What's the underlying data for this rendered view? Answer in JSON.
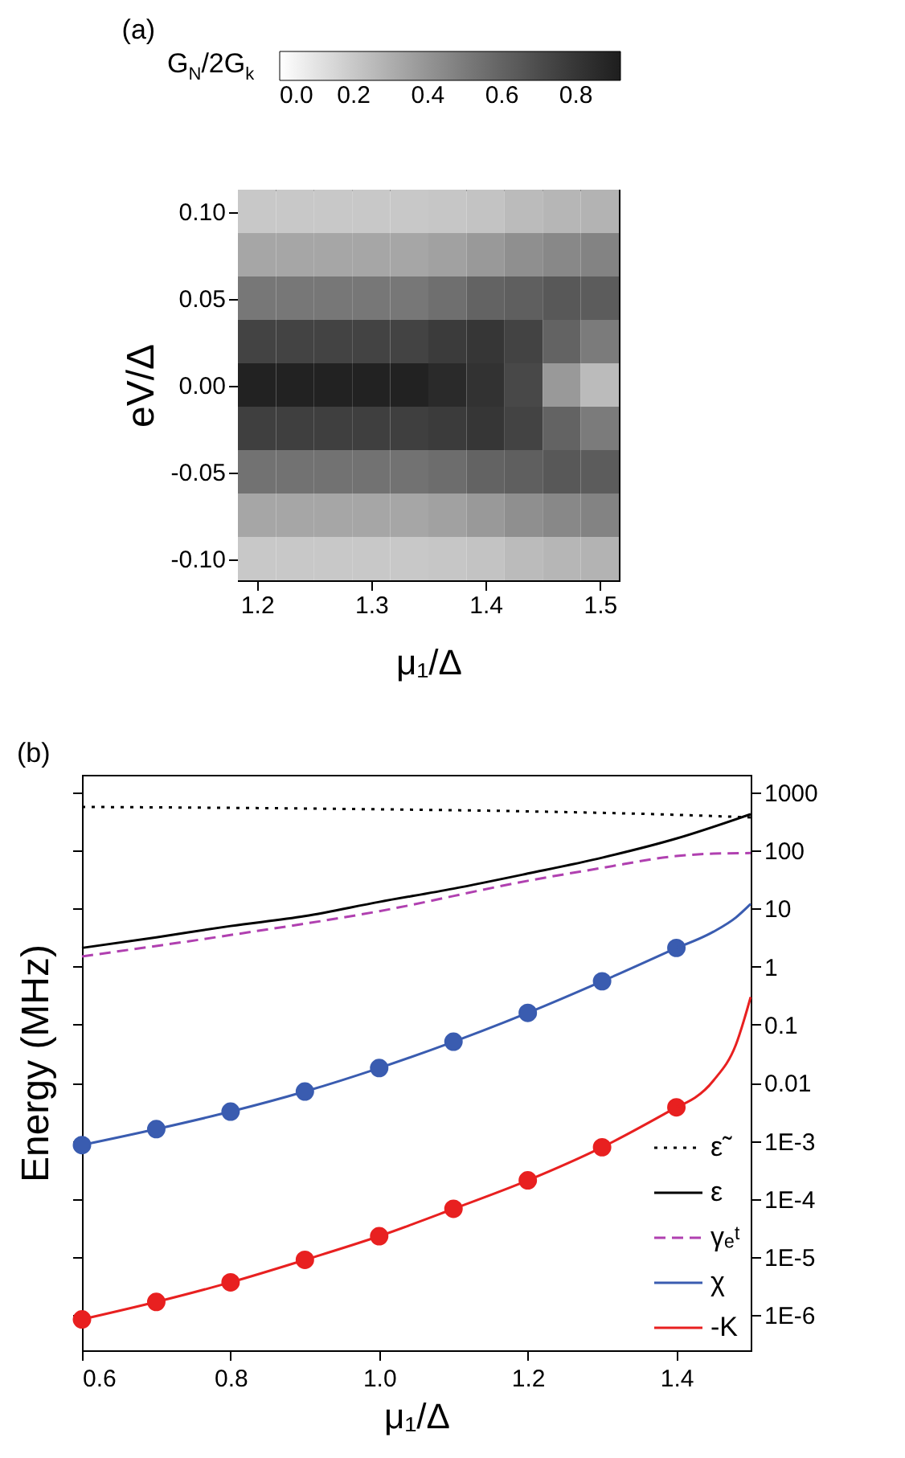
{
  "chart_data": [
    {
      "type": "heatmap",
      "title": "(a)",
      "xlabel": "μ₁/Δ",
      "ylabel": "eV/Δ",
      "clabel": "G$_{N}$/2G$_{k}$",
      "categories": [
        "1.2",
        null,
        null,
        "1.3",
        null,
        null,
        "1.4",
        null,
        null,
        "1.5"
      ],
      "y_categories": [
        "0.10",
        null,
        "0.05",
        null,
        "0.00",
        null,
        "-0.05",
        null,
        "-0.10"
      ],
      "cells": [
        [
          0.2,
          0.2,
          0.2,
          0.2,
          0.2,
          0.21,
          0.22,
          0.25,
          0.27,
          0.28
        ],
        [
          0.33,
          0.33,
          0.33,
          0.33,
          0.33,
          0.35,
          0.38,
          0.42,
          0.45,
          0.47
        ],
        [
          0.52,
          0.52,
          0.52,
          0.52,
          0.52,
          0.55,
          0.6,
          0.62,
          0.65,
          0.63
        ],
        [
          0.74,
          0.74,
          0.74,
          0.74,
          0.74,
          0.78,
          0.8,
          0.74,
          0.6,
          0.5
        ],
        [
          0.9,
          0.9,
          0.9,
          0.9,
          0.9,
          0.86,
          0.82,
          0.72,
          0.38,
          0.25
        ],
        [
          0.76,
          0.76,
          0.76,
          0.76,
          0.76,
          0.78,
          0.8,
          0.74,
          0.6,
          0.5
        ],
        [
          0.54,
          0.54,
          0.54,
          0.54,
          0.54,
          0.56,
          0.6,
          0.62,
          0.65,
          0.63
        ],
        [
          0.33,
          0.33,
          0.33,
          0.33,
          0.33,
          0.35,
          0.38,
          0.42,
          0.45,
          0.47
        ],
        [
          0.2,
          0.2,
          0.2,
          0.2,
          0.2,
          0.21,
          0.22,
          0.25,
          0.27,
          0.28
        ]
      ],
      "clim": [
        0,
        0.92
      ],
      "cticks": [
        {
          "value": 0,
          "label": "0.0"
        },
        0.2,
        0.4,
        0.6,
        0.8
      ]
    },
    {
      "type": "line",
      "title": "(b)",
      "xlabel": "μ₁/Δ",
      "ylabel": "Energy (MHz)",
      "log": true,
      "legend": "bottom right",
      "xlim": [
        0.6,
        1.5
      ],
      "xticks": [
        0.6,
        0.8,
        {
          "value": 1,
          "label": "1.0"
        },
        1.2,
        1.4
      ],
      "ylim": [
        2.5e-07,
        2000
      ],
      "yticks": [
        1000,
        100,
        10,
        1,
        0.1,
        0.01,
        {
          "value": 0.001,
          "label": "1E-3"
        },
        {
          "value": 0.0001,
          "label": "1E-4"
        },
        {
          "value": 1e-05,
          "label": "1E-5"
        },
        {
          "value": 1e-06,
          "label": "1E-6"
        }
      ],
      "series": [
        {
          "name": "ε̃",
          "color": "#000000",
          "line_style": "dotted",
          "x": [
            0.6,
            0.8,
            1.0,
            1.2,
            1.4,
            1.5
          ],
          "values": [
            560,
            540,
            510,
            470,
            410,
            370
          ]
        },
        {
          "name": "ε",
          "color": "#000000",
          "line_style": "solid",
          "x": [
            0.6,
            0.7,
            0.8,
            0.9,
            1.0,
            1.1,
            1.2,
            1.3,
            1.4,
            1.5
          ],
          "values": [
            2.1,
            3.2,
            5,
            7.4,
            13,
            22,
            40,
            75,
            160,
            420
          ]
        },
        {
          "name": "γₑᵗ",
          "color": "#b040b0",
          "line_style": "dashed",
          "x": [
            0.6,
            0.8,
            1.0,
            1.2,
            1.3,
            1.4,
            1.45,
            1.5
          ],
          "values": [
            1.5,
            3.5,
            9,
            30,
            50,
            80,
            88,
            90
          ]
        },
        {
          "name": "χ",
          "color": "#3a5cb0",
          "line_style": "solid",
          "marker": "circle",
          "x": [
            0.6,
            0.7,
            0.8,
            0.9,
            1.0,
            1.1,
            1.2,
            1.3,
            1.4
          ],
          "values": [
            0.00085,
            0.0016,
            0.0032,
            0.0071,
            0.018,
            0.051,
            0.16,
            0.56,
            2.1
          ]
        },
        {
          "color": "#3a5cb0",
          "line_style": "solid",
          "x": [
            1.4,
            1.45,
            1.48,
            1.5
          ],
          "values": [
            2.1,
            4,
            7,
            12
          ]
        },
        {
          "name": "-K",
          "color": "#e82020",
          "line_style": "solid",
          "marker": "circle",
          "x": [
            0.6,
            0.7,
            0.8,
            0.9,
            1.0,
            1.1,
            1.2,
            1.3,
            1.4
          ],
          "values": [
            8.5e-07,
            1.7e-06,
            3.7e-06,
            9e-06,
            2.3e-05,
            6.8e-05,
            0.00021,
            0.00078,
            0.0038
          ]
        },
        {
          "color": "#e82020",
          "line_style": "solid",
          "x": [
            1.4,
            1.45,
            1.48,
            1.5
          ],
          "values": [
            0.0038,
            0.011,
            0.045,
            0.3
          ]
        }
      ]
    }
  ]
}
